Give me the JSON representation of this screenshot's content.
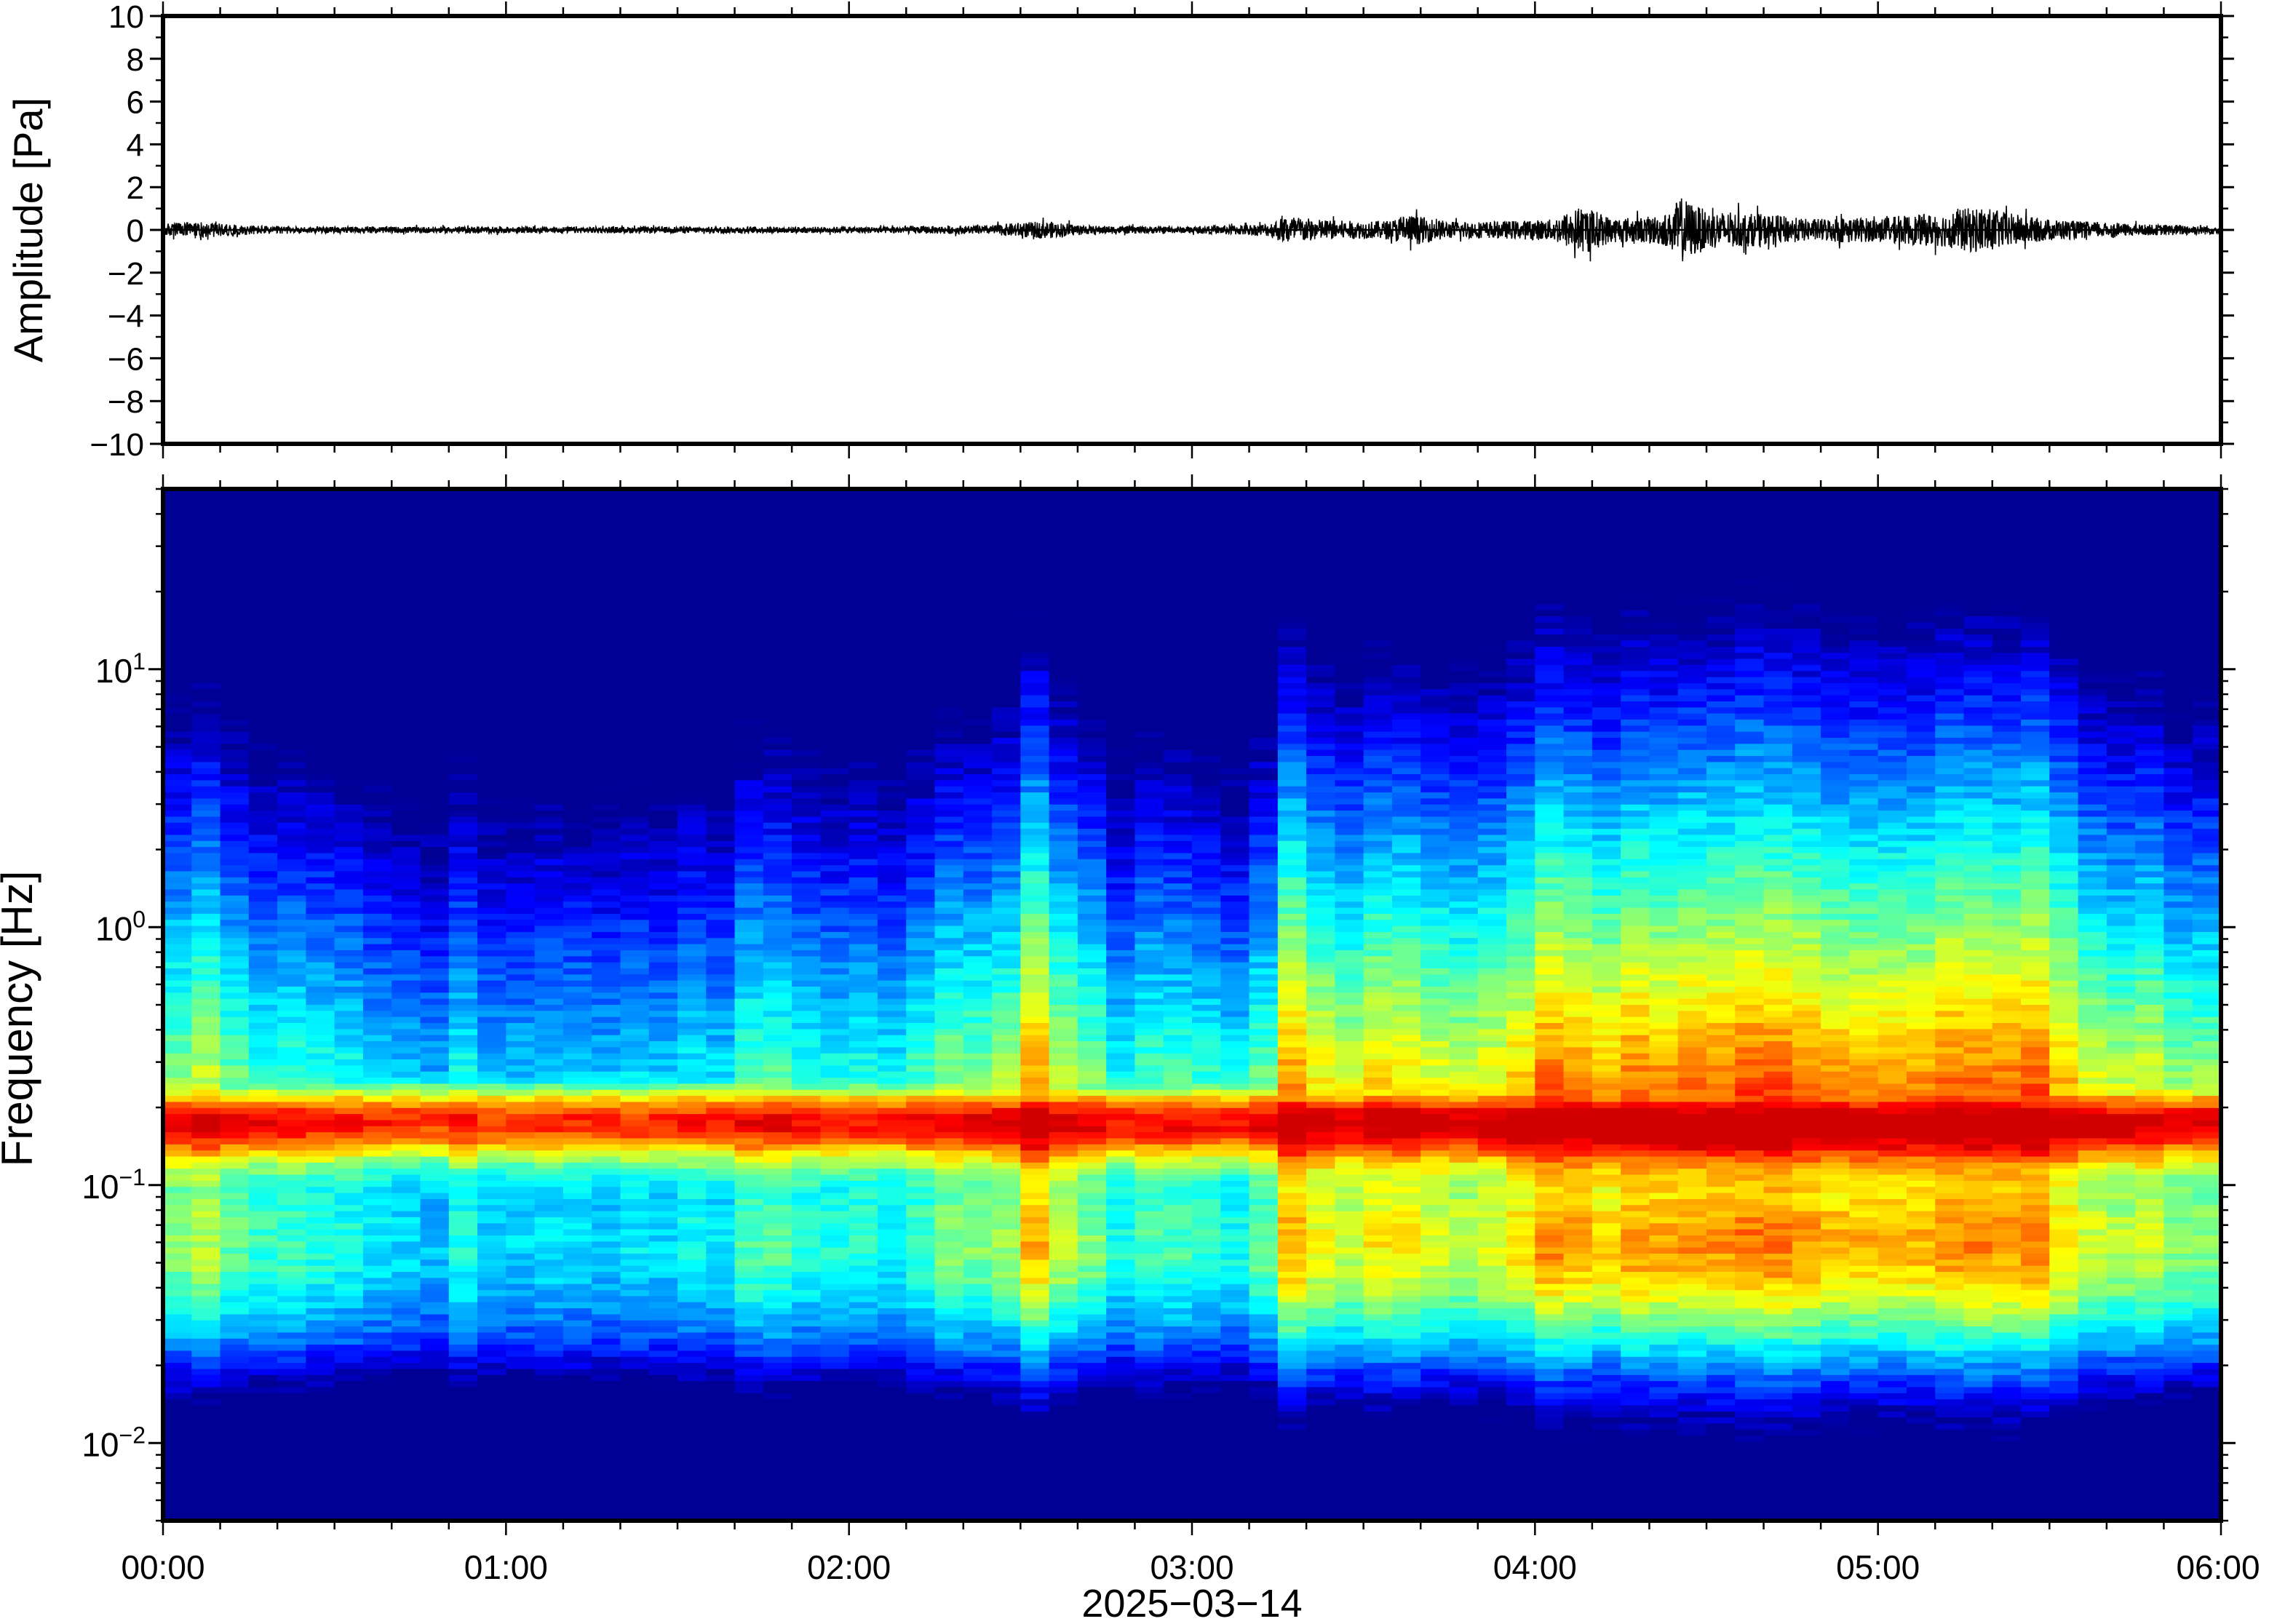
{
  "chart_data": [
    {
      "type": "line",
      "panel": "waveform",
      "ylabel": "Amplitude [Pa]",
      "xlabel": "2025−03−14",
      "ylim": [
        -10,
        10
      ],
      "xlim": [
        "00:00",
        "06:00"
      ],
      "yticks": [
        10,
        8,
        6,
        4,
        2,
        0,
        -2,
        -4,
        -6,
        -8,
        -10
      ],
      "ytick_labels": [
        "10",
        "8",
        "6",
        "4",
        "2",
        "0",
        "−2",
        "−4",
        "−6",
        "−8",
        "−10"
      ],
      "xtick_labels": [
        "00:00",
        "01:00",
        "02:00",
        "03:00",
        "04:00",
        "05:00",
        "06:00"
      ],
      "grid": false,
      "envelope": {
        "x_hours": [
          0.0,
          0.1,
          0.2,
          0.4,
          0.8,
          1.2,
          1.6,
          2.0,
          2.4,
          2.5,
          2.58,
          2.7,
          3.0,
          3.22,
          3.28,
          3.36,
          3.5,
          3.58,
          3.62,
          3.75,
          3.9,
          4.05,
          4.1,
          4.15,
          4.22,
          4.32,
          4.4,
          4.42,
          4.5,
          4.6,
          4.7,
          4.8,
          4.9,
          5.0,
          5.1,
          5.2,
          5.25,
          5.3,
          5.35,
          5.45,
          5.5,
          5.6,
          5.7,
          5.8,
          5.9,
          6.0
        ],
        "amplitude_pa": [
          0.3,
          0.4,
          0.25,
          0.15,
          0.15,
          0.15,
          0.15,
          0.15,
          0.2,
          0.35,
          0.4,
          0.2,
          0.15,
          0.3,
          0.7,
          0.5,
          0.4,
          0.45,
          0.75,
          0.4,
          0.4,
          0.5,
          0.9,
          1.1,
          0.6,
          0.6,
          0.8,
          1.6,
          0.9,
          0.8,
          0.7,
          0.5,
          0.6,
          0.55,
          0.7,
          0.8,
          1.0,
          1.1,
          0.9,
          0.6,
          0.5,
          0.4,
          0.3,
          0.25,
          0.25,
          0.2
        ]
      }
    },
    {
      "type": "heatmap",
      "panel": "spectrogram",
      "ylabel": "Frequency [Hz]",
      "xlabel": "2025−03−14",
      "yscale": "log",
      "ylim": [
        0.005,
        50
      ],
      "xlim": [
        "00:00",
        "06:00"
      ],
      "yticks": [
        10,
        1,
        0.1,
        0.01
      ],
      "ytick_labels": [
        {
          "base": "10",
          "exp": "1"
        },
        {
          "base": "10",
          "exp": "0"
        },
        {
          "base": "10",
          "exp": "−1"
        },
        {
          "base": "10",
          "exp": "−2"
        }
      ],
      "xtick_labels": [
        "00:00",
        "01:00",
        "02:00",
        "03:00",
        "04:00",
        "05:00",
        "06:00"
      ],
      "colormap": "jet",
      "colors": [
        "#000080",
        "#0000ff",
        "#00ffff",
        "#ffff00",
        "#ff0000"
      ],
      "microbarom_peak_hz": 0.18,
      "activity_profile": {
        "x_hours": [
          0.0,
          0.15,
          0.25,
          0.5,
          1.0,
          1.5,
          1.75,
          2.0,
          2.45,
          2.55,
          2.6,
          2.7,
          3.0,
          3.2,
          3.3,
          3.45,
          3.6,
          3.75,
          3.9,
          4.05,
          4.15,
          4.3,
          4.42,
          4.55,
          4.7,
          4.85,
          5.0,
          5.15,
          5.3,
          5.45,
          5.6,
          5.8,
          6.0
        ],
        "relative_level": [
          0.45,
          0.6,
          0.3,
          0.2,
          0.2,
          0.22,
          0.35,
          0.25,
          0.5,
          0.75,
          0.7,
          0.4,
          0.25,
          0.35,
          0.8,
          0.6,
          0.75,
          0.65,
          0.6,
          0.85,
          0.9,
          0.8,
          1.0,
          0.85,
          0.9,
          0.75,
          0.8,
          0.8,
          0.95,
          0.85,
          0.6,
          0.55,
          0.5
        ]
      }
    }
  ]
}
